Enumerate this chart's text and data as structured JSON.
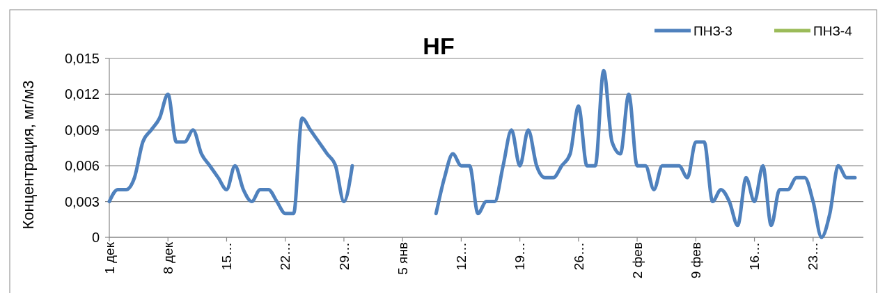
{
  "chart_data": {
    "type": "line",
    "title": "HF",
    "ylabel": "Концентрация, мг/м3",
    "categories": [
      "1 дек",
      null,
      null,
      null,
      null,
      null,
      null,
      "8 дек",
      null,
      null,
      null,
      null,
      null,
      null,
      "15…",
      null,
      null,
      null,
      null,
      null,
      null,
      "22…",
      null,
      null,
      null,
      null,
      null,
      null,
      "29…",
      null,
      null,
      null,
      null,
      null,
      null,
      "5 янв",
      null,
      null,
      null,
      null,
      null,
      null,
      "12…",
      null,
      null,
      null,
      null,
      null,
      null,
      "19…",
      null,
      null,
      null,
      null,
      null,
      null,
      "26…",
      null,
      null,
      null,
      null,
      null,
      null,
      "2 фев",
      null,
      null,
      null,
      null,
      null,
      null,
      "9 фев",
      null,
      null,
      null,
      null,
      null,
      null,
      "16…",
      null,
      null,
      null,
      null,
      null,
      null,
      "23…",
      null,
      null,
      null,
      null,
      null
    ],
    "series": [
      {
        "name": "ПНЗ-3",
        "color": "#4f81bd",
        "values": [
          0.003,
          0.004,
          0.004,
          0.005,
          0.008,
          0.009,
          0.01,
          0.012,
          0.008,
          0.008,
          0.009,
          0.007,
          0.006,
          0.005,
          0.004,
          0.006,
          0.004,
          0.003,
          0.004,
          0.004,
          0.003,
          0.002,
          0.002,
          0.01,
          0.009,
          0.008,
          0.007,
          0.006,
          0.003,
          0.006,
          null,
          null,
          null,
          null,
          null,
          null,
          null,
          null,
          null,
          0.002,
          0.005,
          0.007,
          0.006,
          0.006,
          0.002,
          0.003,
          0.003,
          0.006,
          0.009,
          0.006,
          0.009,
          0.006,
          0.005,
          0.005,
          0.006,
          0.007,
          0.011,
          0.006,
          0.006,
          0.014,
          0.008,
          0.007,
          0.012,
          0.006,
          0.006,
          0.004,
          0.006,
          0.006,
          0.006,
          0.005,
          0.008,
          0.008,
          0.003,
          0.004,
          0.003,
          0.001,
          0.005,
          0.003,
          0.006,
          0.001,
          0.004,
          0.004,
          0.005,
          0.005,
          0.003,
          0,
          0.002,
          0.006,
          0.005,
          0.005
        ]
      },
      {
        "name": "ПНЗ-4",
        "color": "#9bbb59",
        "values": [
          null,
          null,
          null,
          null,
          null,
          null,
          null,
          null,
          null,
          null,
          null,
          null,
          null,
          null,
          null,
          null,
          null,
          null,
          null,
          null,
          null,
          null,
          null,
          null,
          null,
          null,
          null,
          null,
          null,
          null,
          null,
          null,
          null,
          null,
          null,
          null,
          null,
          null,
          null,
          null,
          null,
          null,
          null,
          null,
          null,
          null,
          null,
          null,
          null,
          null,
          null,
          null,
          null,
          null,
          null,
          null,
          null,
          null,
          null,
          null,
          null,
          null,
          null,
          null,
          null,
          null,
          null,
          null,
          null,
          null,
          null,
          null,
          null,
          null,
          null,
          null,
          null,
          null,
          null,
          null,
          null,
          null,
          null,
          null,
          null,
          null,
          null,
          null,
          null,
          null
        ]
      }
    ],
    "ylim": [
      0,
      0.015
    ],
    "yticks": [
      {
        "value": 0,
        "label": "0"
      },
      {
        "value": 0.003,
        "label": "0,003"
      },
      {
        "value": 0.006,
        "label": "0,006"
      },
      {
        "value": 0.009,
        "label": "0,009"
      },
      {
        "value": 0.012,
        "label": "0,012"
      },
      {
        "value": 0.015,
        "label": "0,015"
      }
    ],
    "grid": "y",
    "legend": "top right",
    "marker": "none",
    "line_style": "solid"
  }
}
